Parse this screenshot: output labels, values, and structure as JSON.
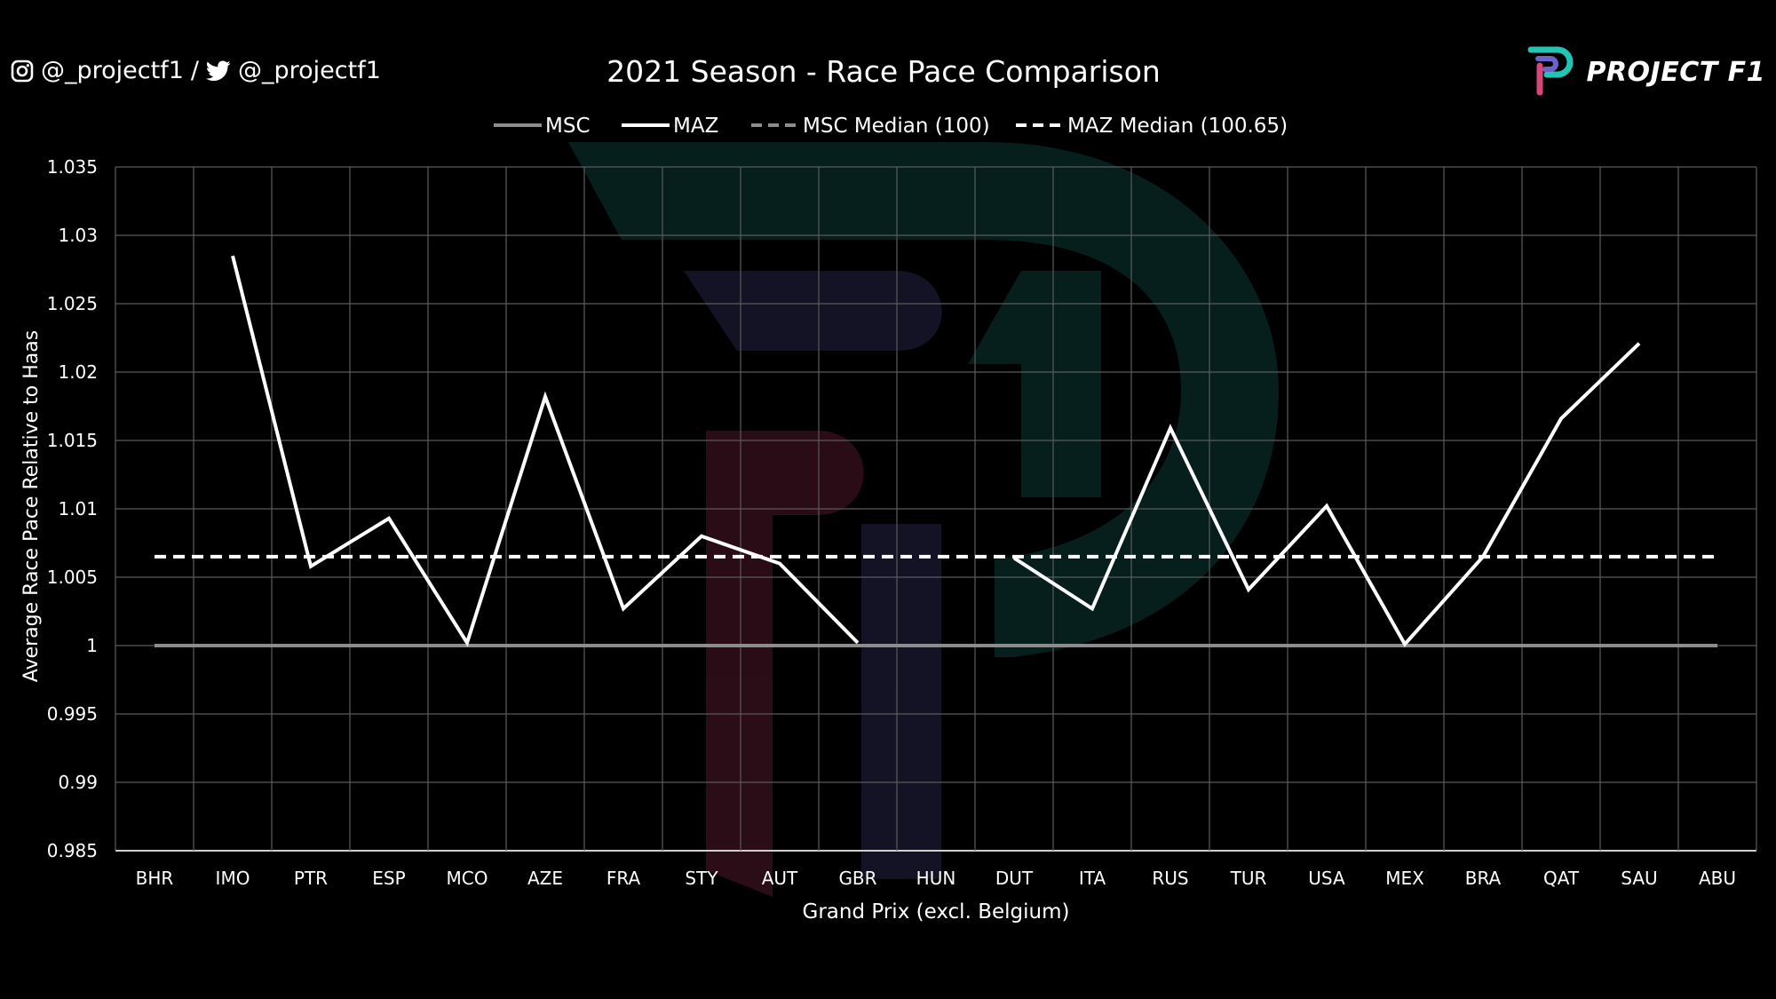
{
  "social": {
    "instagram_handle": "@_projectf1",
    "separator": "/",
    "twitter_handle": "@_projectf1",
    "icons": [
      "instagram-icon",
      "twitter-icon"
    ]
  },
  "brand": {
    "name": "PROJECT F1",
    "icon": "project-f1-logo"
  },
  "chart_data": {
    "type": "line",
    "title": "2021 Season - Race Pace Comparison",
    "xlabel": "Grand Prix (excl. Belgium)",
    "ylabel": "Average Race Pace Relative to Haas",
    "ylim": [
      0.985,
      1.035
    ],
    "yticks": [
      "0.985",
      "0.99",
      "0.995",
      "1",
      "1.005",
      "1.01",
      "1.015",
      "1.02",
      "1.025",
      "1.03",
      "1.035"
    ],
    "grid": true,
    "legend_position": "top-center",
    "categories": [
      "BHR",
      "IMO",
      "PTR",
      "ESP",
      "MCO",
      "AZE",
      "FRA",
      "STY",
      "AUT",
      "GBR",
      "HUN",
      "DUT",
      "ITA",
      "RUS",
      "TUR",
      "USA",
      "MEX",
      "BRA",
      "QAT",
      "SAU",
      "ABU"
    ],
    "series": [
      {
        "name": "MSC",
        "style": "solid",
        "color": "#8c8c8c",
        "values": [
          1,
          1,
          1,
          1,
          1,
          1,
          1,
          1,
          1,
          1,
          1,
          1,
          1,
          1,
          1,
          1,
          1,
          1,
          1,
          1,
          1
        ]
      },
      {
        "name": "MAZ",
        "style": "solid",
        "color": "#ffffff",
        "values": [
          null,
          1.0285,
          1.0058,
          1.0093,
          1.0002,
          1.0182,
          1.0027,
          1.008,
          1.006,
          1.0002,
          null,
          1.0064,
          1.0027,
          1.0159,
          1.0041,
          1.0102,
          1.0001,
          1.0065,
          1.0166,
          1.0221,
          null
        ]
      },
      {
        "name": "MSC Median (100)",
        "style": "dashed",
        "color": "#8c8c8c",
        "values": [
          1,
          1,
          1,
          1,
          1,
          1,
          1,
          1,
          1,
          1,
          1,
          1,
          1,
          1,
          1,
          1,
          1,
          1,
          1,
          1,
          1
        ]
      },
      {
        "name": "MAZ Median (100.65)",
        "style": "dashed",
        "color": "#ffffff",
        "values": [
          1.0065,
          1.0065,
          1.0065,
          1.0065,
          1.0065,
          1.0065,
          1.0065,
          1.0065,
          1.0065,
          1.0065,
          1.0065,
          1.0065,
          1.0065,
          1.0065,
          1.0065,
          1.0065,
          1.0065,
          1.0065,
          1.0065,
          1.0065,
          1.0065
        ]
      }
    ]
  }
}
